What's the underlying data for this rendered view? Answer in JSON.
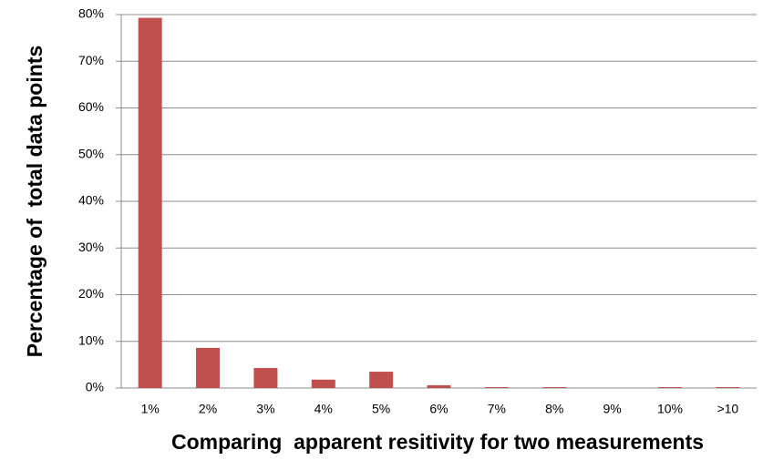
{
  "chart_data": {
    "type": "bar",
    "x_label": "Comparing  apparent resitivity for two measurements",
    "y_label": "Percentage of  total data points",
    "categories": [
      "1%",
      "2%",
      "3%",
      "4%",
      "5%",
      "6%",
      "7%",
      "8%",
      "9%",
      "10%",
      ">10"
    ],
    "values": [
      79.3,
      8.6,
      4.3,
      1.8,
      3.5,
      0.6,
      0.2,
      0.2,
      0,
      0.2,
      0.2
    ],
    "color": "#c0504d",
    "ylim": [
      0,
      80
    ],
    "yticks": [
      {
        "value": 0,
        "label": "0%"
      },
      {
        "value": 10,
        "label": "10%"
      },
      {
        "value": 20,
        "label": "20%"
      },
      {
        "value": 30,
        "label": "30%"
      },
      {
        "value": 40,
        "label": "40%"
      },
      {
        "value": 50,
        "label": "50%"
      },
      {
        "value": 60,
        "label": "60%"
      },
      {
        "value": 70,
        "label": "70%"
      },
      {
        "value": 80,
        "label": "80%"
      }
    ],
    "grid": true
  }
}
